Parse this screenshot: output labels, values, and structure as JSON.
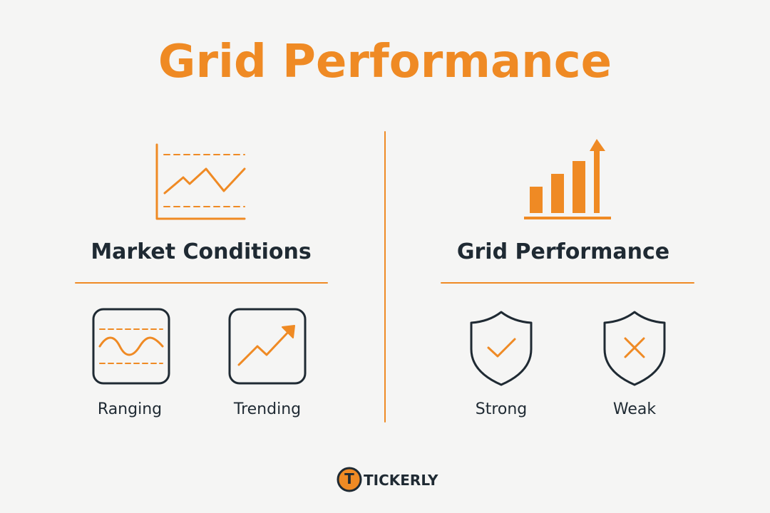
{
  "title": "Grid Performance",
  "left": {
    "heading": "Market Conditions",
    "items": [
      "Ranging",
      "Trending"
    ]
  },
  "right": {
    "heading": "Grid Performance",
    "items": [
      "Strong",
      "Weak"
    ]
  },
  "brand": {
    "name": "TICKERLY",
    "logo_letter": "T"
  }
}
